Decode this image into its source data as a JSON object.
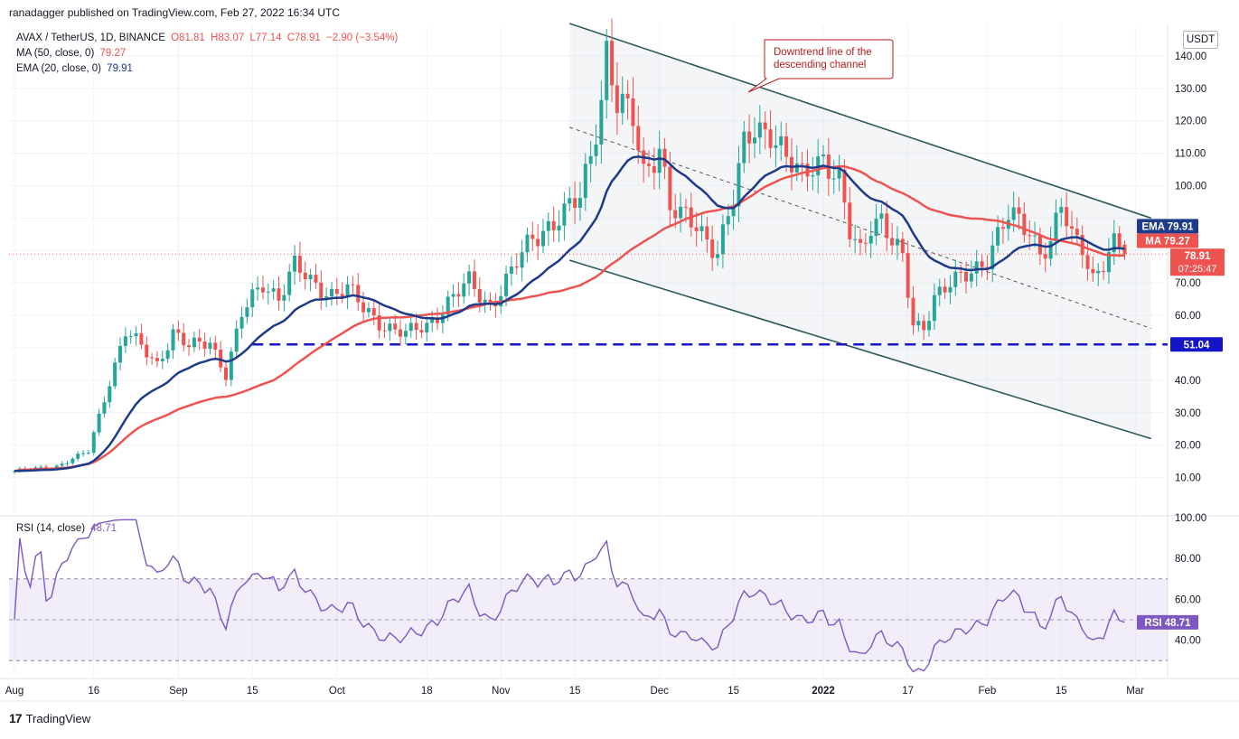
{
  "publisher": "ranadagger published on TradingView.com, Feb 27, 2022 16:34 UTC",
  "legend": {
    "symbol": "AVAX / TetherUS, 1D, BINANCE",
    "open": "O81.81",
    "high": "H83.07",
    "low": "L77.14",
    "close": "C78.91",
    "change": "−2.90 (−3.54%)",
    "ma_label": "MA (50, close, 0)",
    "ma_value": "79.27",
    "ema_label": "EMA (20, close, 0)",
    "ema_value": "79.91",
    "rsi_label": "RSI (14, close)",
    "rsi_value": "48.71"
  },
  "currency_button": "USDT",
  "annotation": "Downtrend line of the descending channel",
  "price_tags": {
    "ema": {
      "name": "EMA",
      "value": "79.91"
    },
    "ma": {
      "name": "MA",
      "value": "79.27"
    },
    "last": {
      "value": "78.91",
      "countdown": "07:25:47"
    },
    "support": {
      "value": "51.04"
    },
    "rsi": {
      "name": "RSI",
      "value": "48.71"
    }
  },
  "watermark": "TradingView",
  "colors": {
    "up": "#26a69a",
    "down": "#ef5350",
    "ema": "#1e3a8a",
    "ma": "#ef5350",
    "channel": "#2a5a5a",
    "support": "#1414c8",
    "rsi": "#7e57c2"
  },
  "chart_data": {
    "type": "candlestick",
    "symbol": "AVAX / TetherUS",
    "interval": "1D",
    "price_axis": {
      "ticks": [
        10,
        20,
        30,
        40,
        50,
        60,
        70,
        80,
        90,
        100,
        110,
        120,
        130,
        140
      ],
      "labels": [
        "10.00",
        "20.00",
        "30.00",
        "40.00",
        "",
        "60.00",
        "70.00",
        "",
        "",
        "100.00",
        "110.00",
        "120.00",
        "130.00",
        "140.00"
      ],
      "range": [
        5,
        150
      ]
    },
    "rsi_axis": {
      "ticks": [
        40,
        60,
        80,
        100
      ],
      "labels": [
        "40.00",
        "60.00",
        "80.00",
        "100.00"
      ],
      "range": [
        20,
        100
      ],
      "bands": [
        30,
        70
      ],
      "midline": 50
    },
    "x_axis_labels": [
      {
        "label": "Aug",
        "day": 0
      },
      {
        "label": "16",
        "day": 15
      },
      {
        "label": "Sep",
        "day": 31
      },
      {
        "label": "15",
        "day": 45
      },
      {
        "label": "Oct",
        "day": 61
      },
      {
        "label": "18",
        "day": 78
      },
      {
        "label": "Nov",
        "day": 92
      },
      {
        "label": "15",
        "day": 106
      },
      {
        "label": "Dec",
        "day": 122
      },
      {
        "label": "15",
        "day": 136
      },
      {
        "label": "2022",
        "day": 153
      },
      {
        "label": "17",
        "day": 169
      },
      {
        "label": "Feb",
        "day": 184
      },
      {
        "label": "15",
        "day": 198
      },
      {
        "label": "Mar",
        "day": 212
      }
    ],
    "last_day": 210,
    "support_level": 51.04,
    "channel": {
      "upper": [
        [
          105,
          150
        ],
        [
          215,
          90
        ]
      ],
      "lower": [
        [
          105,
          77
        ],
        [
          215,
          22
        ]
      ],
      "mid": [
        [
          105,
          118
        ],
        [
          215,
          56
        ]
      ]
    },
    "closes_anchor": [
      [
        0,
        12
      ],
      [
        8,
        13.5
      ],
      [
        14,
        18
      ],
      [
        18,
        40
      ],
      [
        21,
        55
      ],
      [
        24,
        50
      ],
      [
        27,
        45
      ],
      [
        30,
        55
      ],
      [
        33,
        50
      ],
      [
        37,
        52
      ],
      [
        40,
        42
      ],
      [
        43,
        60
      ],
      [
        47,
        70
      ],
      [
        50,
        66
      ],
      [
        53,
        75
      ],
      [
        56,
        70
      ],
      [
        60,
        67
      ],
      [
        63,
        68
      ],
      [
        66,
        62
      ],
      [
        70,
        57
      ],
      [
        74,
        54
      ],
      [
        78,
        57
      ],
      [
        82,
        64
      ],
      [
        86,
        70
      ],
      [
        90,
        63
      ],
      [
        94,
        73
      ],
      [
        98,
        84
      ],
      [
        101,
        88
      ],
      [
        104,
        91
      ],
      [
        107,
        96
      ],
      [
        109,
        110
      ],
      [
        111,
        128
      ],
      [
        112,
        142
      ],
      [
        114,
        125
      ],
      [
        117,
        120
      ],
      [
        119,
        104
      ],
      [
        122,
        113
      ],
      [
        124,
        93
      ],
      [
        126,
        90
      ],
      [
        129,
        88
      ],
      [
        133,
        80
      ],
      [
        136,
        95
      ],
      [
        138,
        112
      ],
      [
        140,
        119
      ],
      [
        143,
        117
      ],
      [
        146,
        107
      ],
      [
        149,
        103
      ],
      [
        151,
        108
      ],
      [
        153,
        109
      ],
      [
        156,
        100
      ],
      [
        158,
        85
      ],
      [
        160,
        80
      ],
      [
        162,
        89
      ],
      [
        164,
        90
      ],
      [
        166,
        82
      ],
      [
        168,
        77
      ],
      [
        170,
        57
      ],
      [
        172,
        57
      ],
      [
        174,
        66
      ],
      [
        176,
        68
      ],
      [
        178,
        70
      ],
      [
        181,
        74
      ],
      [
        184,
        78
      ],
      [
        186,
        84
      ],
      [
        188,
        90
      ],
      [
        190,
        89
      ],
      [
        192,
        87
      ],
      [
        194,
        80
      ],
      [
        196,
        82
      ],
      [
        198,
        93
      ],
      [
        200,
        84
      ],
      [
        202,
        82
      ],
      [
        204,
        72
      ],
      [
        206,
        76
      ],
      [
        208,
        81
      ],
      [
        210,
        78.91
      ]
    ],
    "series": [
      {
        "name": "EMA (20, close, 0)",
        "last": 79.91
      },
      {
        "name": "MA (50, close, 0)",
        "last": 79.27
      },
      {
        "name": "RSI (14, close)",
        "last": 48.71
      }
    ],
    "last_candle": {
      "open": 81.81,
      "high": 83.07,
      "low": 77.14,
      "close": 78.91
    }
  }
}
